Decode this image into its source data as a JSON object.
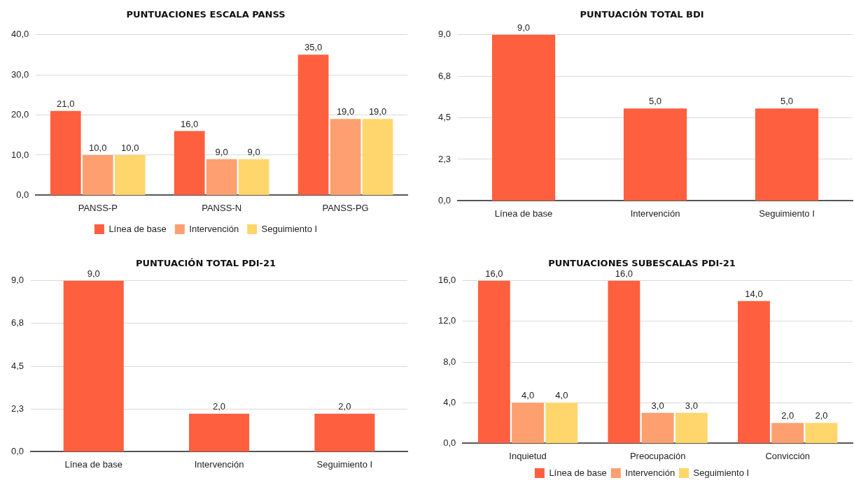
{
  "chart_data": [
    {
      "type": "bar",
      "title": "PUNTUACIONES ESCALA PANSS",
      "categories": [
        "PANSS-P",
        "PANSS-N",
        "PANSS-PG"
      ],
      "series": [
        {
          "name": "Línea de base",
          "color": "#fe5f3f",
          "values": [
            21,
            16,
            35
          ],
          "value_labels": [
            "21,0",
            "16,0",
            "35,0"
          ]
        },
        {
          "name": "Intervención",
          "color": "#fe9f6f",
          "values": [
            10,
            9,
            19
          ],
          "value_labels": [
            "10,0",
            "9,0",
            "19,0"
          ]
        },
        {
          "name": "Seguimiento I",
          "color": "#fed66b",
          "values": [
            10,
            9,
            19
          ],
          "value_labels": [
            "10,0",
            "9,0",
            "19,0"
          ]
        }
      ],
      "ylim": [
        0,
        40
      ],
      "yticks": [
        {
          "value": 0,
          "label": "0,0"
        },
        {
          "value": 10,
          "label": "10,0"
        },
        {
          "value": 20,
          "label": "20,0"
        },
        {
          "value": 30,
          "label": "30,0"
        },
        {
          "value": 40,
          "label": "40,0"
        }
      ],
      "grid": "y",
      "legend": "bottom"
    },
    {
      "type": "bar",
      "title": "PUNTUACIÓN TOTAL BDI",
      "categories": [
        "Línea de base",
        "Intervención",
        "Seguimiento I"
      ],
      "series": [
        {
          "color": "#fe5f3f",
          "values": [
            9,
            5,
            5
          ],
          "value_labels": [
            "9,0",
            "5,0",
            "5,0"
          ]
        }
      ],
      "ylim": [
        0,
        9
      ],
      "yticks": [
        {
          "value": 0,
          "label": "0,0"
        },
        {
          "value": 2.25,
          "label": "2,3"
        },
        {
          "value": 4.5,
          "label": "4,5"
        },
        {
          "value": 6.75,
          "label": "6,8"
        },
        {
          "value": 9,
          "label": "9,0"
        }
      ],
      "grid": "y"
    },
    {
      "type": "bar",
      "title": "PUNTUACIÓN TOTAL PDI-21",
      "categories": [
        "Línea de base",
        "Intervención",
        "Seguimiento I"
      ],
      "series": [
        {
          "color": "#fe5f3f",
          "values": [
            9,
            2,
            2
          ],
          "value_labels": [
            "9,0",
            "2,0",
            "2,0"
          ]
        }
      ],
      "ylim": [
        0,
        9
      ],
      "yticks": [
        {
          "value": 0,
          "label": "0,0"
        },
        {
          "value": 2.25,
          "label": "2,3"
        },
        {
          "value": 4.5,
          "label": "4,5"
        },
        {
          "value": 6.75,
          "label": "6,8"
        },
        {
          "value": 9,
          "label": "9,0"
        }
      ],
      "grid": "y"
    },
    {
      "type": "bar",
      "title": "PUNTUACIONES SUBESCALAS PDI-21",
      "categories": [
        "Inquietud",
        "Preocupación",
        "Convicción"
      ],
      "series": [
        {
          "name": "Línea de base",
          "color": "#fe5f3f",
          "values": [
            16,
            16,
            14
          ],
          "value_labels": [
            "16,0",
            "16,0",
            "14,0"
          ]
        },
        {
          "name": "Intervención",
          "color": "#fe9f6f",
          "values": [
            4,
            3,
            2
          ],
          "value_labels": [
            "4,0",
            "3,0",
            "2,0"
          ]
        },
        {
          "name": "Seguimiento I",
          "color": "#fed66b",
          "values": [
            4,
            3,
            2
          ],
          "value_labels": [
            "4,0",
            "3,0",
            "2,0"
          ]
        }
      ],
      "ylim": [
        0,
        16
      ],
      "yticks": [
        {
          "value": 0,
          "label": "0,0"
        },
        {
          "value": 4,
          "label": "4,0"
        },
        {
          "value": 8,
          "label": "8,0"
        },
        {
          "value": 12,
          "label": "12,0"
        },
        {
          "value": 16,
          "label": "16,0"
        }
      ],
      "grid": "y",
      "legend": "bottom"
    }
  ]
}
